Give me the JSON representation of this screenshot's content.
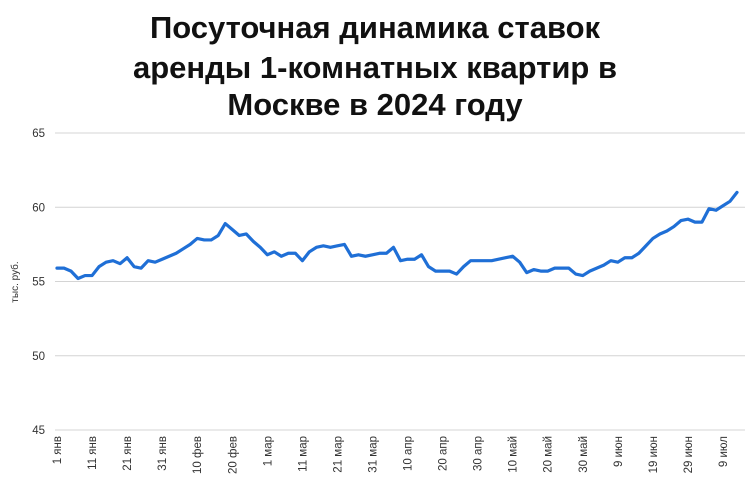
{
  "chart_data": {
    "type": "line",
    "title": [
      "Посуточная динамика ставок",
      "аренды 1-комнатных квартир в",
      "Москве в 2024 году"
    ],
    "y_label": "тыс. руб.",
    "categories": [
      "1 янв",
      null,
      null,
      null,
      null,
      "11 янв",
      null,
      null,
      null,
      null,
      "21 янв",
      null,
      null,
      null,
      null,
      "31 янв",
      null,
      null,
      null,
      null,
      "10 фев",
      null,
      null,
      null,
      null,
      "20 фев",
      null,
      null,
      null,
      null,
      "1 мар",
      null,
      null,
      null,
      null,
      "11 мар",
      null,
      null,
      null,
      null,
      "21 мар",
      null,
      null,
      null,
      null,
      "31 мар",
      null,
      null,
      null,
      null,
      "10 апр",
      null,
      null,
      null,
      null,
      "20 апр",
      null,
      null,
      null,
      null,
      "30 апр",
      null,
      null,
      null,
      null,
      "10 май",
      null,
      null,
      null,
      null,
      "20 май",
      null,
      null,
      null,
      null,
      "30 май",
      null,
      null,
      null,
      null,
      "9 июн",
      null,
      null,
      null,
      null,
      "19 июн",
      null,
      null,
      null,
      null,
      "29 июн",
      null,
      null,
      null,
      null,
      "9 июл",
      null,
      null
    ],
    "values": [
      55.9,
      55.9,
      55.7,
      55.2,
      55.4,
      55.4,
      56.0,
      56.3,
      56.4,
      56.2,
      56.6,
      56.0,
      55.9,
      56.4,
      56.3,
      56.5,
      56.7,
      56.9,
      57.2,
      57.5,
      57.9,
      57.8,
      57.8,
      58.1,
      58.9,
      58.5,
      58.1,
      58.2,
      57.7,
      57.3,
      56.8,
      57.0,
      56.7,
      56.9,
      56.9,
      56.4,
      57.0,
      57.3,
      57.4,
      57.3,
      57.4,
      57.5,
      56.7,
      56.8,
      56.7,
      56.8,
      56.9,
      56.9,
      57.3,
      56.4,
      56.5,
      56.5,
      56.8,
      56.0,
      55.7,
      55.7,
      55.7,
      55.5,
      56.0,
      56.4,
      56.4,
      56.4,
      56.4,
      56.5,
      56.6,
      56.7,
      56.3,
      55.6,
      55.8,
      55.7,
      55.7,
      55.9,
      55.9,
      55.9,
      55.5,
      55.4,
      55.7,
      55.9,
      56.1,
      56.4,
      56.3,
      56.6,
      56.6,
      56.9,
      57.4,
      57.9,
      58.2,
      58.4,
      58.7,
      59.1,
      59.2,
      59.0,
      59.0,
      59.9,
      59.8,
      60.1,
      60.4,
      61.0
    ],
    "color": "#1f6fd6",
    "ylim": [
      45,
      65
    ],
    "yticks": [
      45,
      50,
      55,
      60,
      65
    ],
    "grid": true
  }
}
